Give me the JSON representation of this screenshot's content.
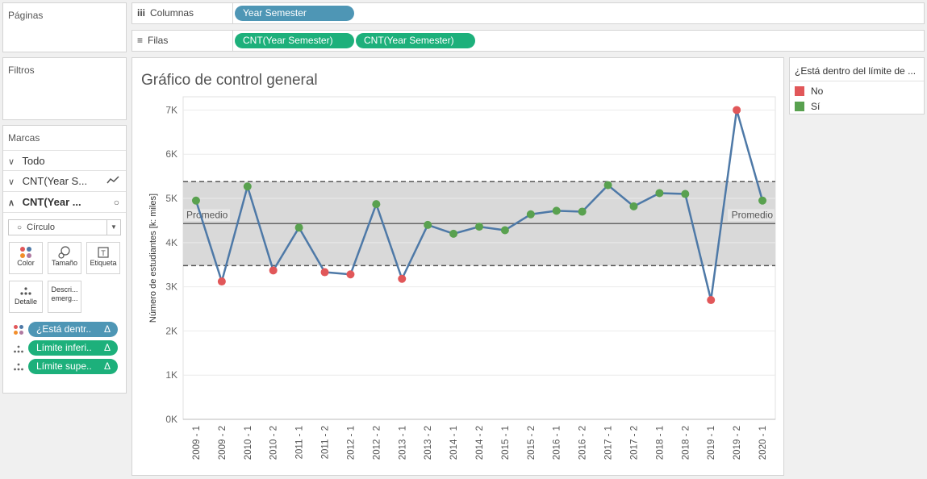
{
  "sidebar": {
    "pages_title": "Páginas",
    "filters_title": "Filtros",
    "marks_title": "Marcas",
    "marks_rows": [
      {
        "label": "Todo"
      },
      {
        "label": "CNT(Year S..."
      },
      {
        "label": "CNT(Year ..."
      }
    ],
    "mark_type": "Círculo",
    "buttons": [
      {
        "label": "Color",
        "icon": "color-dots-icon"
      },
      {
        "label": "Tamaño",
        "icon": "size-icon"
      },
      {
        "label": "Etiqueta",
        "icon": "label-icon"
      },
      {
        "label": "Detalle",
        "icon": "detail-icon"
      },
      {
        "label": "Descri... emerg...",
        "icon": "tooltip-icon"
      }
    ],
    "mark_pills": [
      {
        "label": "¿Está dentr..",
        "delta": "Δ",
        "color": "#4e96b5",
        "icon": "color-dots-icon"
      },
      {
        "label": "Límite inferi..",
        "delta": "Δ",
        "color": "#1db07b",
        "icon": "detail-icon"
      },
      {
        "label": "Límite supe..",
        "delta": "Δ",
        "color": "#1db07b",
        "icon": "detail-icon"
      }
    ]
  },
  "shelves": {
    "columns_label": "Columnas",
    "rows_label": "Filas",
    "columns_pills": [
      "Year Semester"
    ],
    "rows_pills": [
      "CNT(Year Semester)",
      "CNT(Year Semester)"
    ]
  },
  "legend": {
    "title": "¿Está dentro del límite de ...",
    "items": [
      {
        "label": "No",
        "color": "#e15759"
      },
      {
        "label": "Sí",
        "color": "#59a14f"
      }
    ]
  },
  "chart": {
    "title": "Gráfico de control general",
    "ylabel": "Número de estudiantes  [k: miles]",
    "avg_label": "Promedio",
    "line_color": "#4e79a7",
    "band_color": "#d9d9d9",
    "in_color": "#59a14f",
    "out_color": "#e15759"
  },
  "chart_data": {
    "type": "line",
    "categories": [
      "2009 - 1",
      "2009 - 2",
      "2010 - 1",
      "2010 - 2",
      "2011 - 1",
      "2011 - 2",
      "2012 - 1",
      "2012 - 2",
      "2013 - 1",
      "2013 - 2",
      "2014 - 1",
      "2014 - 2",
      "2015 - 1",
      "2015 - 2",
      "2016 - 1",
      "2016 - 2",
      "2017 - 1",
      "2017 - 2",
      "2018 - 1",
      "2018 - 2",
      "2019 - 1",
      "2019 - 2",
      "2020 - 1"
    ],
    "values": [
      4950,
      3120,
      5270,
      3370,
      4340,
      3330,
      3280,
      4870,
      3180,
      4400,
      4200,
      4360,
      4280,
      4640,
      4720,
      4700,
      5300,
      4820,
      5120,
      5100,
      2700,
      7000,
      4950
    ],
    "within_limits": [
      true,
      false,
      true,
      false,
      true,
      false,
      false,
      true,
      false,
      true,
      true,
      true,
      true,
      true,
      true,
      true,
      true,
      true,
      true,
      true,
      false,
      false,
      true
    ],
    "average": 4430,
    "upper_limit": 5380,
    "lower_limit": 3480,
    "ylim": [
      0,
      7300
    ],
    "yticks": [
      0,
      1000,
      2000,
      3000,
      4000,
      5000,
      6000,
      7000
    ],
    "ytick_labels": [
      "0K",
      "1K",
      "2K",
      "3K",
      "4K",
      "5K",
      "6K",
      "7K"
    ],
    "grid": true,
    "legend_position": "right"
  }
}
